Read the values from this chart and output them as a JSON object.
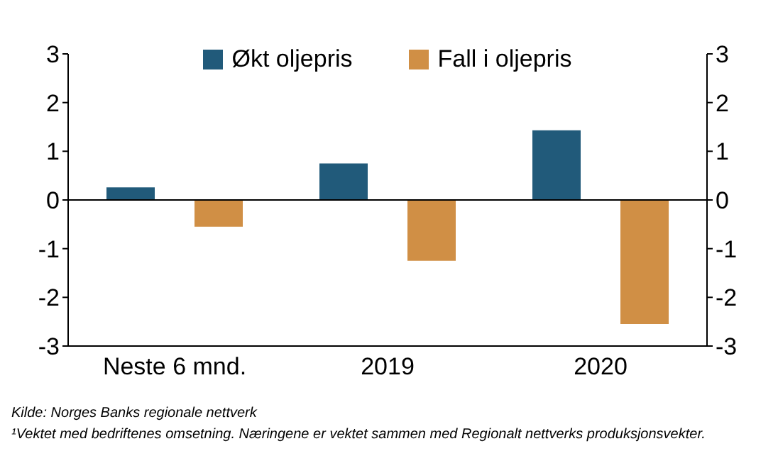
{
  "chart_data": {
    "type": "bar",
    "categories": [
      "Neste 6 mnd.",
      "2019",
      "2020"
    ],
    "series": [
      {
        "name": "Økt oljepris",
        "color": "#215a7a",
        "values": [
          0.26,
          0.75,
          1.43
        ]
      },
      {
        "name": "Fall i oljepris",
        "color": "#d08f45",
        "values": [
          -0.55,
          -1.25,
          -2.55
        ]
      }
    ],
    "ylim": [
      -3,
      3
    ],
    "yticks": [
      -3,
      -2,
      -1,
      0,
      1,
      2,
      3
    ],
    "y2lim": [
      -3,
      3
    ],
    "y2ticks": [
      -3,
      -2,
      -1,
      0,
      1,
      2,
      3
    ],
    "ref_lines": [
      {
        "axis": "y",
        "value": 0,
        "color": "#000000"
      }
    ],
    "legend": "top",
    "grid": false,
    "annotations": [
      "Kilde: Norges Banks regionale nettverk",
      "¹Vektet med bedriftenes omsetning. Næringene er vektet sammen med Regionalt nettverks produksjonsvekter."
    ]
  }
}
